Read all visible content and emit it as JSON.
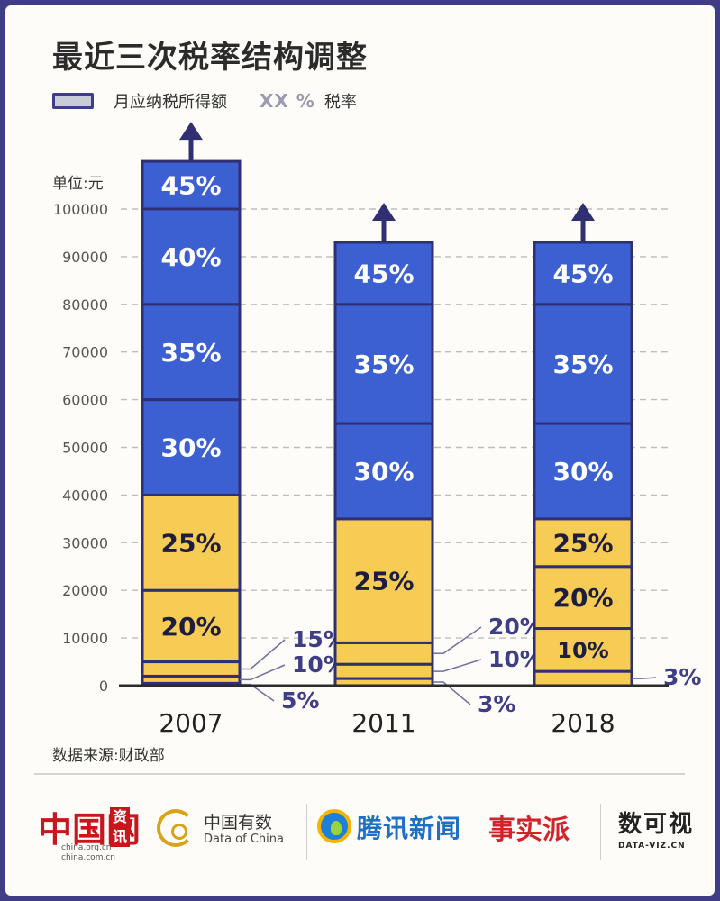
{
  "title": "最近三次税率结构调整",
  "legend": {
    "income_label": "月应纳税所得额",
    "rate_marker": "XX %",
    "rate_label": "税率"
  },
  "unit": "单位:元",
  "source": "数据来源:财政部",
  "colors": {
    "high_brackets": "#3c60d1",
    "low_brackets": "#f6cc55",
    "bar_outline": "#2f2f72",
    "text_on_bar": "#1d1d3f",
    "callout_text": "#3f3d86",
    "gridline": "#bdbdbd",
    "frame": "#3f3d86"
  },
  "chart_data": {
    "type": "bar",
    "stacked": true,
    "ylabel": "单位:元",
    "ylim": [
      0,
      100000
    ],
    "yticks": [
      0,
      10000,
      20000,
      30000,
      40000,
      50000,
      60000,
      70000,
      80000,
      90000,
      100000
    ],
    "grid": true,
    "top_open_arrow": true,
    "categories": [
      "2007",
      "2011",
      "2018"
    ],
    "bars": [
      {
        "year": "2007",
        "open_ended_top": 110000,
        "brackets": [
          {
            "rate": "5%",
            "from": 0,
            "to": 500,
            "color_group": "low",
            "label_position": "callout"
          },
          {
            "rate": "10%",
            "from": 500,
            "to": 2000,
            "color_group": "low",
            "label_position": "callout"
          },
          {
            "rate": "15%",
            "from": 2000,
            "to": 5000,
            "color_group": "low",
            "label_position": "callout"
          },
          {
            "rate": "20%",
            "from": 5000,
            "to": 20000,
            "color_group": "low",
            "label_position": "inside"
          },
          {
            "rate": "25%",
            "from": 20000,
            "to": 40000,
            "color_group": "low",
            "label_position": "inside"
          },
          {
            "rate": "30%",
            "from": 40000,
            "to": 60000,
            "color_group": "high",
            "label_position": "inside"
          },
          {
            "rate": "35%",
            "from": 60000,
            "to": 80000,
            "color_group": "high",
            "label_position": "inside"
          },
          {
            "rate": "40%",
            "from": 80000,
            "to": 100000,
            "color_group": "high",
            "label_position": "inside"
          },
          {
            "rate": "45%",
            "from": 100000,
            "to": null,
            "color_group": "high",
            "label_position": "inside"
          }
        ]
      },
      {
        "year": "2011",
        "open_ended_top": 93000,
        "brackets": [
          {
            "rate": "3%",
            "from": 0,
            "to": 1500,
            "color_group": "low",
            "label_position": "callout"
          },
          {
            "rate": "10%",
            "from": 1500,
            "to": 4500,
            "color_group": "low",
            "label_position": "callout"
          },
          {
            "rate": "20%",
            "from": 4500,
            "to": 9000,
            "color_group": "low",
            "label_position": "callout"
          },
          {
            "rate": "25%",
            "from": 9000,
            "to": 35000,
            "color_group": "low",
            "label_position": "inside"
          },
          {
            "rate": "30%",
            "from": 35000,
            "to": 55000,
            "color_group": "high",
            "label_position": "inside"
          },
          {
            "rate": "35%",
            "from": 55000,
            "to": 80000,
            "color_group": "high",
            "label_position": "inside"
          },
          {
            "rate": "45%",
            "from": 80000,
            "to": null,
            "color_group": "high",
            "label_position": "inside"
          }
        ]
      },
      {
        "year": "2018",
        "open_ended_top": 93000,
        "brackets": [
          {
            "rate": "3%",
            "from": 0,
            "to": 3000,
            "color_group": "low",
            "label_position": "callout"
          },
          {
            "rate": "10%",
            "from": 3000,
            "to": 12000,
            "color_group": "low",
            "label_position": "inside"
          },
          {
            "rate": "20%",
            "from": 12000,
            "to": 25000,
            "color_group": "low",
            "label_position": "inside"
          },
          {
            "rate": "25%",
            "from": 25000,
            "to": 35000,
            "color_group": "low",
            "label_position": "inside"
          },
          {
            "rate": "30%",
            "from": 35000,
            "to": 55000,
            "color_group": "high",
            "label_position": "inside"
          },
          {
            "rate": "35%",
            "from": 55000,
            "to": 80000,
            "color_group": "high",
            "label_position": "inside"
          },
          {
            "rate": "45%",
            "from": 80000,
            "to": null,
            "color_group": "high",
            "label_position": "inside"
          }
        ]
      }
    ]
  },
  "footer": {
    "chinaorg": {
      "mark": "中国网",
      "stamp": "资讯",
      "url_line1": "china.org.cn",
      "url_line2": "china.com.cn"
    },
    "dataofchina": {
      "name": "中国有数",
      "subtitle": "Data of China"
    },
    "tencent": {
      "name": "腾讯新闻",
      "column": "事实派"
    },
    "dataviz": {
      "mark": "数可视",
      "url": "DATA-VIZ.CN"
    }
  }
}
